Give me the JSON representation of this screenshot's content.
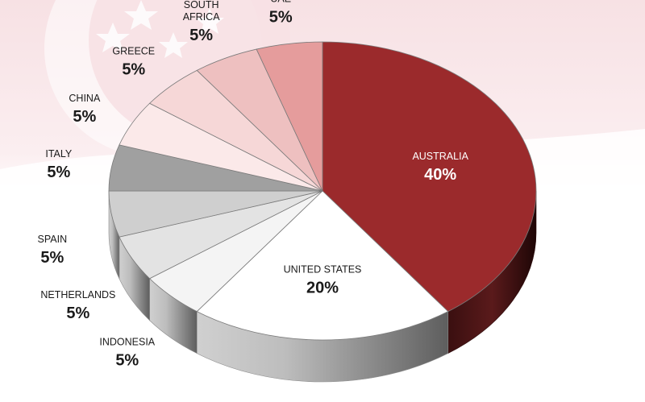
{
  "chart_data": {
    "type": "pie",
    "title": "",
    "style": "3d",
    "slices": [
      {
        "name": "AUSTRALIA",
        "value": 40,
        "label": "40%",
        "color": "#9b2a2c"
      },
      {
        "name": "UNITED STATES",
        "value": 20,
        "label": "20%",
        "color": "#ffffff"
      },
      {
        "name": "INDONESIA",
        "value": 5,
        "label": "5%",
        "color": "#f4f4f4"
      },
      {
        "name": "NETHERLANDS",
        "value": 5,
        "label": "5%",
        "color": "#e3e3e3"
      },
      {
        "name": "SPAIN",
        "value": 5,
        "label": "5%",
        "color": "#cfcfcf"
      },
      {
        "name": "ITALY",
        "value": 5,
        "label": "5%",
        "color": "#a0a0a0"
      },
      {
        "name": "CHINA",
        "value": 5,
        "label": "5%",
        "color": "#fbe9e9"
      },
      {
        "name": "GREECE",
        "value": 5,
        "label": "5%",
        "color": "#f6d7d7"
      },
      {
        "name": "SOUTH\nAFRICA",
        "value": 5,
        "label": "5%",
        "color": "#eec0c0"
      },
      {
        "name": "UAE",
        "value": 5,
        "label": "5%",
        "color": "#e59c9c"
      }
    ]
  },
  "background": {
    "flag_red": "#f7e4e6",
    "flag_white": "#ffffff",
    "star_color": "#ffffff"
  }
}
